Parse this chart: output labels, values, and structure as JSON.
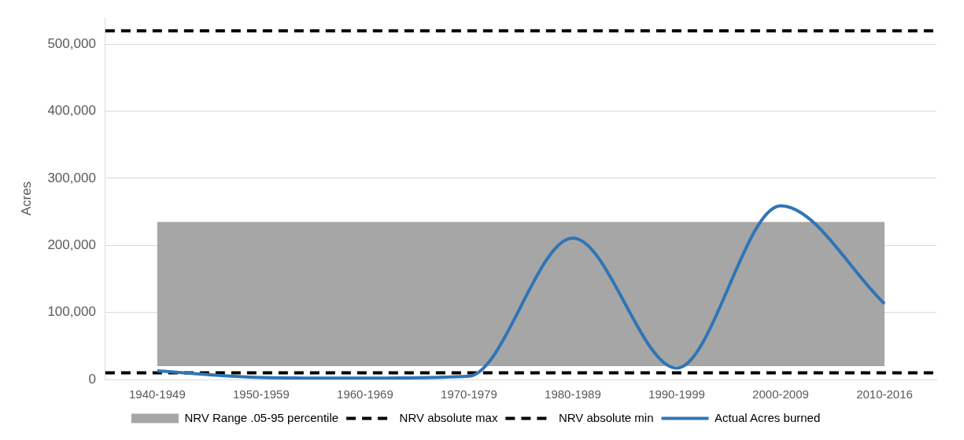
{
  "chart_data": {
    "type": "line",
    "ylabel": "Acres",
    "categories": [
      "1940-1949",
      "1950-1959",
      "1960-1969",
      "1970-1979",
      "1980-1989",
      "1990-1999",
      "2000-2009",
      "2010-2016"
    ],
    "series": [
      {
        "name": "Actual Acres burned",
        "color": "#2e75b6",
        "values": [
          13000,
          3000,
          2000,
          5000,
          211000,
          17000,
          259000,
          113000
        ]
      }
    ],
    "bands": [
      {
        "axis": "y",
        "from": 20000,
        "to": 235000,
        "label": "NRV Range .05-95 percentile",
        "color": "#a6a6a6"
      }
    ],
    "ref_lines": [
      {
        "axis": "y",
        "value": 520000,
        "label": "NRV absolute max",
        "color": "#000000",
        "line_style": "dashed"
      },
      {
        "axis": "y",
        "value": 10000,
        "label": "NRV absolute min",
        "color": "#000000",
        "line_style": "dashed"
      }
    ],
    "ylim": [
      0,
      540000
    ],
    "yticks": [
      0,
      {
        "value": 100000,
        "label": "100,000"
      },
      {
        "value": 200000,
        "label": "200,000"
      },
      {
        "value": 300000,
        "label": "300,000"
      },
      {
        "value": 400000,
        "label": "400,000"
      },
      {
        "value": 500000,
        "label": "500,000"
      }
    ],
    "grid": "y",
    "legend": "bottom",
    "marker": "none",
    "line_style": "solid"
  }
}
